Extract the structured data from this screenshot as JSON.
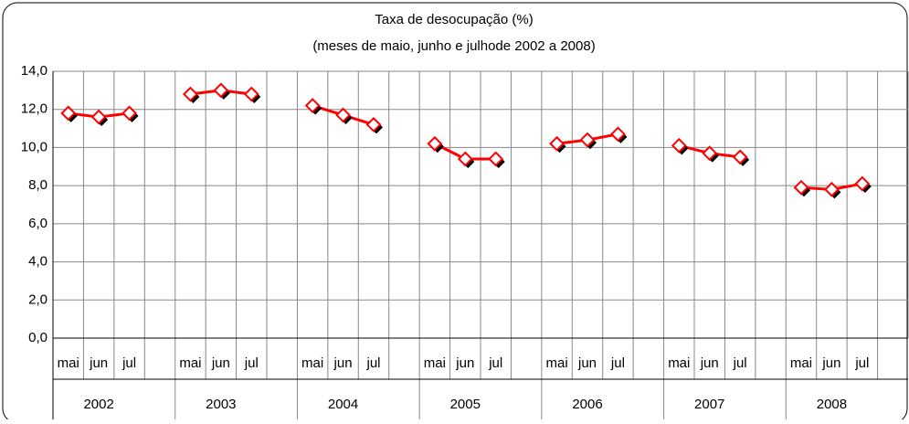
{
  "chart_data": {
    "type": "line",
    "title": "Taxa de desocupação (%)",
    "subtitle": "(meses de maio, junho e julhode 2002 a 2008)",
    "categories": [
      "mai",
      "jun",
      "jul",
      null,
      "mai",
      "jun",
      "jul",
      null,
      "mai",
      "jun",
      "jul",
      null,
      "mai",
      "jun",
      "jul",
      null,
      "mai",
      "jun",
      "jul",
      null,
      "mai",
      "jun",
      "jul",
      null,
      "mai",
      "jun",
      "jul",
      null
    ],
    "category_groups": [
      "2002",
      "2003",
      "2004",
      "2005",
      "2006",
      "2007",
      "2008"
    ],
    "values": [
      11.8,
      11.6,
      11.8,
      null,
      12.8,
      13.0,
      12.8,
      null,
      12.2,
      11.7,
      11.2,
      null,
      10.2,
      9.4,
      9.4,
      null,
      10.2,
      10.4,
      10.7,
      null,
      10.1,
      9.7,
      9.5,
      null,
      7.9,
      7.8,
      8.1,
      null
    ],
    "color": "#ff0000",
    "ylim": [
      0,
      14
    ],
    "yticks": [
      {
        "value": 0,
        "label": "0,0"
      },
      {
        "value": 2,
        "label": "2,0"
      },
      {
        "value": 4,
        "label": "4,0"
      },
      {
        "value": 6,
        "label": "6,0"
      },
      {
        "value": 8,
        "label": "8,0"
      },
      {
        "value": 10,
        "label": "10,0"
      },
      {
        "value": 12,
        "label": "12,0"
      },
      {
        "value": 14,
        "label": "14,0"
      }
    ],
    "grid": true
  }
}
